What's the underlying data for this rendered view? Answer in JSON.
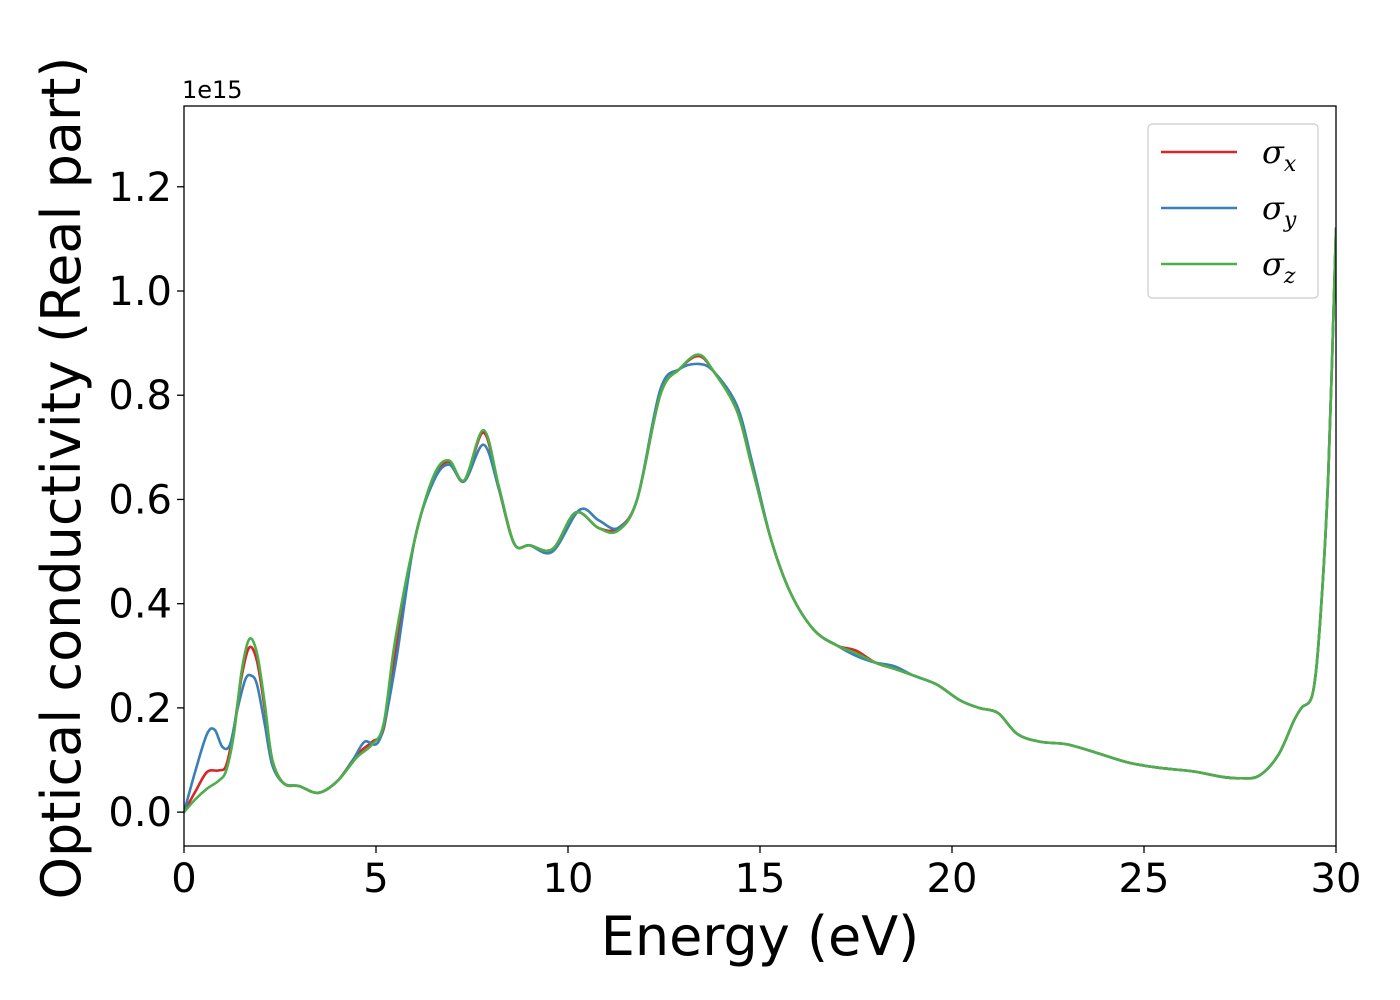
{
  "chart_data": {
    "type": "line",
    "title": "",
    "xlabel": "Energy (eV)",
    "ylabel": "Optical conductivity (Real part)",
    "offset_text": "1e15",
    "xlim": [
      0,
      30
    ],
    "ylim": [
      -0.065,
      1.355
    ],
    "x_ticks": [
      0,
      5,
      10,
      15,
      20,
      25,
      30
    ],
    "x_tick_labels": [
      "0",
      "5",
      "10",
      "15",
      "20",
      "25",
      "30"
    ],
    "y_ticks": [
      0.0,
      0.2,
      0.4,
      0.6,
      0.8,
      1.0,
      1.2
    ],
    "y_tick_labels": [
      "0.0",
      "0.2",
      "0.4",
      "0.6",
      "0.8",
      "1.0",
      "1.2"
    ],
    "grid": false,
    "legend_position": "top-right",
    "series": [
      {
        "name": "σx",
        "symbol": "σ",
        "subscript": "x",
        "color": "#d62728",
        "points": [
          [
            0,
            0
          ],
          [
            0.3,
            0.04
          ],
          [
            0.6,
            0.077
          ],
          [
            0.9,
            0.08
          ],
          [
            1.1,
            0.09
          ],
          [
            1.3,
            0.16
          ],
          [
            1.5,
            0.26
          ],
          [
            1.7,
            0.316
          ],
          [
            1.9,
            0.29
          ],
          [
            2.1,
            0.2
          ],
          [
            2.3,
            0.1
          ],
          [
            2.6,
            0.055
          ],
          [
            3.0,
            0.05
          ],
          [
            3.5,
            0.037
          ],
          [
            4.0,
            0.06
          ],
          [
            4.5,
            0.11
          ],
          [
            4.9,
            0.135
          ],
          [
            5.2,
            0.16
          ],
          [
            5.5,
            0.3
          ],
          [
            6.0,
            0.52
          ],
          [
            6.5,
            0.64
          ],
          [
            6.9,
            0.672
          ],
          [
            7.3,
            0.635
          ],
          [
            7.8,
            0.728
          ],
          [
            8.2,
            0.62
          ],
          [
            8.6,
            0.515
          ],
          [
            9.0,
            0.512
          ],
          [
            9.6,
            0.505
          ],
          [
            10.2,
            0.575
          ],
          [
            10.8,
            0.545
          ],
          [
            11.3,
            0.545
          ],
          [
            11.8,
            0.6
          ],
          [
            12.4,
            0.8
          ],
          [
            12.9,
            0.85
          ],
          [
            13.4,
            0.875
          ],
          [
            13.8,
            0.845
          ],
          [
            14.4,
            0.77
          ],
          [
            14.8,
            0.66
          ],
          [
            15.3,
            0.52
          ],
          [
            15.8,
            0.42
          ],
          [
            16.4,
            0.35
          ],
          [
            17.0,
            0.32
          ],
          [
            17.5,
            0.31
          ],
          [
            18.0,
            0.287
          ],
          [
            18.5,
            0.275
          ],
          [
            19.0,
            0.262
          ],
          [
            19.6,
            0.245
          ],
          [
            20.2,
            0.215
          ],
          [
            20.7,
            0.2
          ],
          [
            21.2,
            0.19
          ],
          [
            21.7,
            0.15
          ],
          [
            22.3,
            0.135
          ],
          [
            23.0,
            0.13
          ],
          [
            23.8,
            0.113
          ],
          [
            24.6,
            0.095
          ],
          [
            25.4,
            0.085
          ],
          [
            26.3,
            0.078
          ],
          [
            27.0,
            0.068
          ],
          [
            27.5,
            0.065
          ],
          [
            28.0,
            0.07
          ],
          [
            28.5,
            0.11
          ],
          [
            28.9,
            0.175
          ],
          [
            29.1,
            0.2
          ],
          [
            29.4,
            0.23
          ],
          [
            29.6,
            0.38
          ],
          [
            29.8,
            0.65
          ],
          [
            30.0,
            1.12
          ]
        ]
      },
      {
        "name": "σy",
        "symbol": "σ",
        "subscript": "y",
        "color": "#3a7fb8",
        "points": [
          [
            0,
            0
          ],
          [
            0.3,
            0.08
          ],
          [
            0.6,
            0.15
          ],
          [
            0.8,
            0.158
          ],
          [
            1.0,
            0.125
          ],
          [
            1.2,
            0.13
          ],
          [
            1.4,
            0.2
          ],
          [
            1.6,
            0.255
          ],
          [
            1.75,
            0.262
          ],
          [
            1.9,
            0.245
          ],
          [
            2.1,
            0.17
          ],
          [
            2.3,
            0.09
          ],
          [
            2.6,
            0.055
          ],
          [
            3.0,
            0.05
          ],
          [
            3.5,
            0.037
          ],
          [
            4.0,
            0.06
          ],
          [
            4.4,
            0.1
          ],
          [
            4.7,
            0.135
          ],
          [
            5.1,
            0.14
          ],
          [
            5.5,
            0.28
          ],
          [
            6.0,
            0.52
          ],
          [
            6.5,
            0.635
          ],
          [
            6.9,
            0.667
          ],
          [
            7.3,
            0.635
          ],
          [
            7.8,
            0.705
          ],
          [
            8.2,
            0.62
          ],
          [
            8.6,
            0.515
          ],
          [
            9.0,
            0.512
          ],
          [
            9.6,
            0.5
          ],
          [
            10.3,
            0.58
          ],
          [
            10.8,
            0.56
          ],
          [
            11.3,
            0.545
          ],
          [
            11.8,
            0.6
          ],
          [
            12.4,
            0.81
          ],
          [
            12.9,
            0.85
          ],
          [
            13.4,
            0.86
          ],
          [
            13.8,
            0.845
          ],
          [
            14.4,
            0.78
          ],
          [
            14.8,
            0.67
          ],
          [
            15.3,
            0.52
          ],
          [
            15.8,
            0.42
          ],
          [
            16.4,
            0.35
          ],
          [
            17.0,
            0.32
          ],
          [
            17.5,
            0.3
          ],
          [
            18.0,
            0.287
          ],
          [
            18.5,
            0.28
          ],
          [
            19.0,
            0.262
          ],
          [
            19.6,
            0.245
          ],
          [
            20.2,
            0.215
          ],
          [
            20.7,
            0.2
          ],
          [
            21.2,
            0.19
          ],
          [
            21.7,
            0.15
          ],
          [
            22.3,
            0.135
          ],
          [
            23.0,
            0.13
          ],
          [
            23.8,
            0.113
          ],
          [
            24.6,
            0.095
          ],
          [
            25.4,
            0.085
          ],
          [
            26.3,
            0.078
          ],
          [
            27.0,
            0.068
          ],
          [
            27.5,
            0.065
          ],
          [
            28.0,
            0.07
          ],
          [
            28.5,
            0.11
          ],
          [
            28.9,
            0.175
          ],
          [
            29.1,
            0.2
          ],
          [
            29.4,
            0.23
          ],
          [
            29.6,
            0.38
          ],
          [
            29.8,
            0.65
          ],
          [
            30.0,
            1.12
          ]
        ]
      },
      {
        "name": "σz",
        "symbol": "σ",
        "subscript": "z",
        "color": "#4daf4a",
        "points": [
          [
            0,
            0
          ],
          [
            0.3,
            0.025
          ],
          [
            0.6,
            0.045
          ],
          [
            0.9,
            0.06
          ],
          [
            1.1,
            0.08
          ],
          [
            1.3,
            0.15
          ],
          [
            1.5,
            0.27
          ],
          [
            1.7,
            0.332
          ],
          [
            1.9,
            0.305
          ],
          [
            2.1,
            0.21
          ],
          [
            2.3,
            0.1
          ],
          [
            2.6,
            0.055
          ],
          [
            3.0,
            0.05
          ],
          [
            3.5,
            0.037
          ],
          [
            4.0,
            0.06
          ],
          [
            4.5,
            0.105
          ],
          [
            4.9,
            0.13
          ],
          [
            5.2,
            0.17
          ],
          [
            5.5,
            0.33
          ],
          [
            6.0,
            0.52
          ],
          [
            6.5,
            0.645
          ],
          [
            6.9,
            0.675
          ],
          [
            7.3,
            0.637
          ],
          [
            7.8,
            0.733
          ],
          [
            8.2,
            0.625
          ],
          [
            8.6,
            0.515
          ],
          [
            9.0,
            0.512
          ],
          [
            9.6,
            0.505
          ],
          [
            10.2,
            0.575
          ],
          [
            10.8,
            0.545
          ],
          [
            11.3,
            0.54
          ],
          [
            11.8,
            0.6
          ],
          [
            12.4,
            0.8
          ],
          [
            12.9,
            0.85
          ],
          [
            13.4,
            0.878
          ],
          [
            13.8,
            0.845
          ],
          [
            14.4,
            0.77
          ],
          [
            14.8,
            0.66
          ],
          [
            15.3,
            0.52
          ],
          [
            15.8,
            0.42
          ],
          [
            16.4,
            0.35
          ],
          [
            17.0,
            0.32
          ],
          [
            17.5,
            0.305
          ],
          [
            18.0,
            0.287
          ],
          [
            18.5,
            0.275
          ],
          [
            19.0,
            0.262
          ],
          [
            19.6,
            0.245
          ],
          [
            20.2,
            0.215
          ],
          [
            20.7,
            0.2
          ],
          [
            21.2,
            0.19
          ],
          [
            21.7,
            0.15
          ],
          [
            22.3,
            0.135
          ],
          [
            23.0,
            0.13
          ],
          [
            23.8,
            0.113
          ],
          [
            24.6,
            0.095
          ],
          [
            25.4,
            0.085
          ],
          [
            26.3,
            0.078
          ],
          [
            27.0,
            0.068
          ],
          [
            27.5,
            0.065
          ],
          [
            28.0,
            0.07
          ],
          [
            28.5,
            0.11
          ],
          [
            28.9,
            0.175
          ],
          [
            29.1,
            0.2
          ],
          [
            29.4,
            0.23
          ],
          [
            29.6,
            0.38
          ],
          [
            29.8,
            0.65
          ],
          [
            30.0,
            1.12
          ]
        ]
      }
    ]
  }
}
